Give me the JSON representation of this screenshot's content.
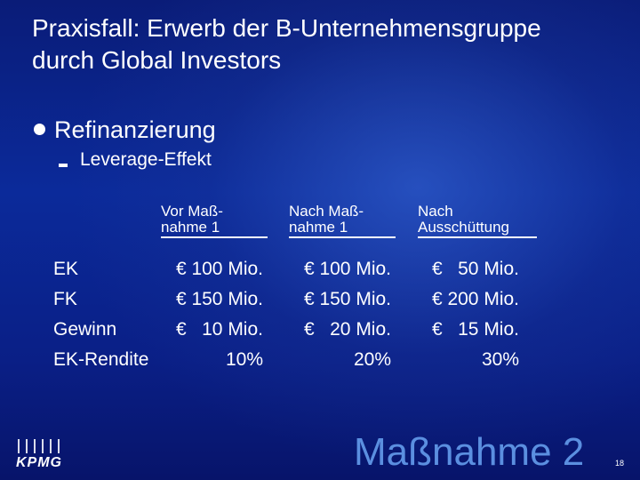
{
  "slide": {
    "title_line1": "Praxisfall: Erwerb der B-Unternehmensgruppe",
    "title_line2": "durch Global Investors",
    "bullet_level1": "Refinanzierung",
    "bullet_level2": "Leverage-Effekt"
  },
  "table": {
    "columns": [
      {
        "line1": "Vor Maß-",
        "line2": "nahme 1"
      },
      {
        "line1": "Nach Maß-",
        "line2": "nahme 1"
      },
      {
        "line1": "Nach",
        "line2": "Ausschüttung"
      }
    ],
    "rows": [
      {
        "label": "EK",
        "values": [
          "€ 100 Mio.",
          "€ 100 Mio.",
          "€   50 Mio."
        ]
      },
      {
        "label": "FK",
        "values": [
          "€ 150 Mio.",
          "€ 150 Mio.",
          "€ 200 Mio."
        ]
      },
      {
        "label": "Gewinn",
        "values": [
          "€   10 Mio.",
          "€   20 Mio.",
          "€   15 Mio."
        ]
      },
      {
        "label": "EK-Rendite",
        "values": [
          "10%",
          "20%",
          "30%"
        ]
      }
    ]
  },
  "footer": {
    "logo_text": "KPMG",
    "watermark": "Maßnahme 2",
    "page_number": "18"
  },
  "colors": {
    "background_primary": "#0b2a9a",
    "text": "#ffffff",
    "watermark": "#5b8fe0"
  }
}
